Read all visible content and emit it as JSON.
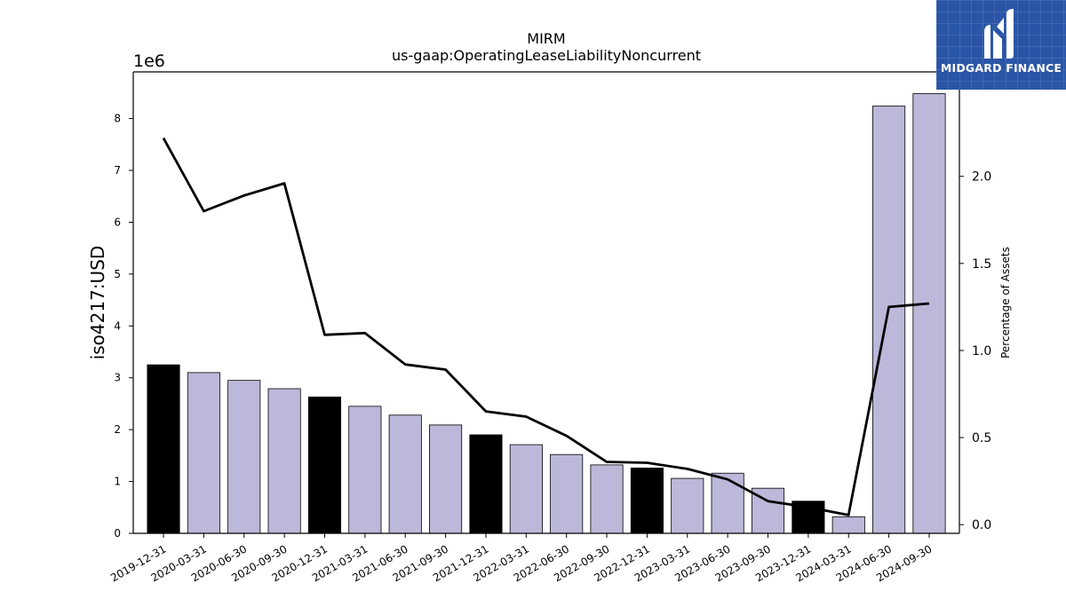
{
  "chart_data": {
    "type": "bar",
    "title": "MIRM",
    "subtitle": "us-gaap:OperatingLeaseLiabilityNoncurrent",
    "ylabel": "iso4217:USD",
    "y_multiplier_label": "1e6",
    "y2label": "Percentage of Assets",
    "categories": [
      "2019-12-31",
      "2020-03-31",
      "2020-06-30",
      "2020-09-30",
      "2020-12-31",
      "2021-03-31",
      "2021-06-30",
      "2021-09-30",
      "2021-12-31",
      "2022-03-31",
      "2022-06-30",
      "2022-09-30",
      "2022-12-31",
      "2023-03-31",
      "2023-06-30",
      "2023-09-30",
      "2023-12-31",
      "2024-03-31",
      "2024-06-30",
      "2024-09-30"
    ],
    "values": [
      3250000,
      3100000,
      2950000,
      2790000,
      2630000,
      2450000,
      2280000,
      2090000,
      1900000,
      1710000,
      1520000,
      1320000,
      1260000,
      1060000,
      1160000,
      870000,
      620000,
      320000,
      8240000,
      8480000
    ],
    "bar_colors": [
      "#000000",
      "#bcb8d9",
      "#bcb8d9",
      "#bcb8d9",
      "#000000",
      "#bcb8d9",
      "#bcb8d9",
      "#bcb8d9",
      "#000000",
      "#bcb8d9",
      "#bcb8d9",
      "#bcb8d9",
      "#000000",
      "#bcb8d9",
      "#bcb8d9",
      "#bcb8d9",
      "#000000",
      "#bcb8d9",
      "#bcb8d9",
      "#bcb8d9"
    ],
    "line_series": {
      "axis": "right",
      "values": [
        2.22,
        1.8,
        1.89,
        1.96,
        1.09,
        1.1,
        0.92,
        0.89,
        0.65,
        0.62,
        0.51,
        0.36,
        0.355,
        0.32,
        0.26,
        0.135,
        0.1,
        0.055,
        1.25,
        1.27
      ]
    },
    "ylim": [
      0,
      8900000
    ],
    "y_ticks": [
      0,
      1,
      2,
      3,
      4,
      5,
      6,
      7,
      8
    ],
    "y2lim": [
      -0.05,
      2.6
    ],
    "y2_ticks": [
      "0.0",
      "0.5",
      "1.0",
      "1.5",
      "2.0"
    ],
    "grid": false,
    "legend": "none"
  },
  "logo": {
    "text": "MIDGARD FINANCE",
    "color": "#2a55a6"
  }
}
